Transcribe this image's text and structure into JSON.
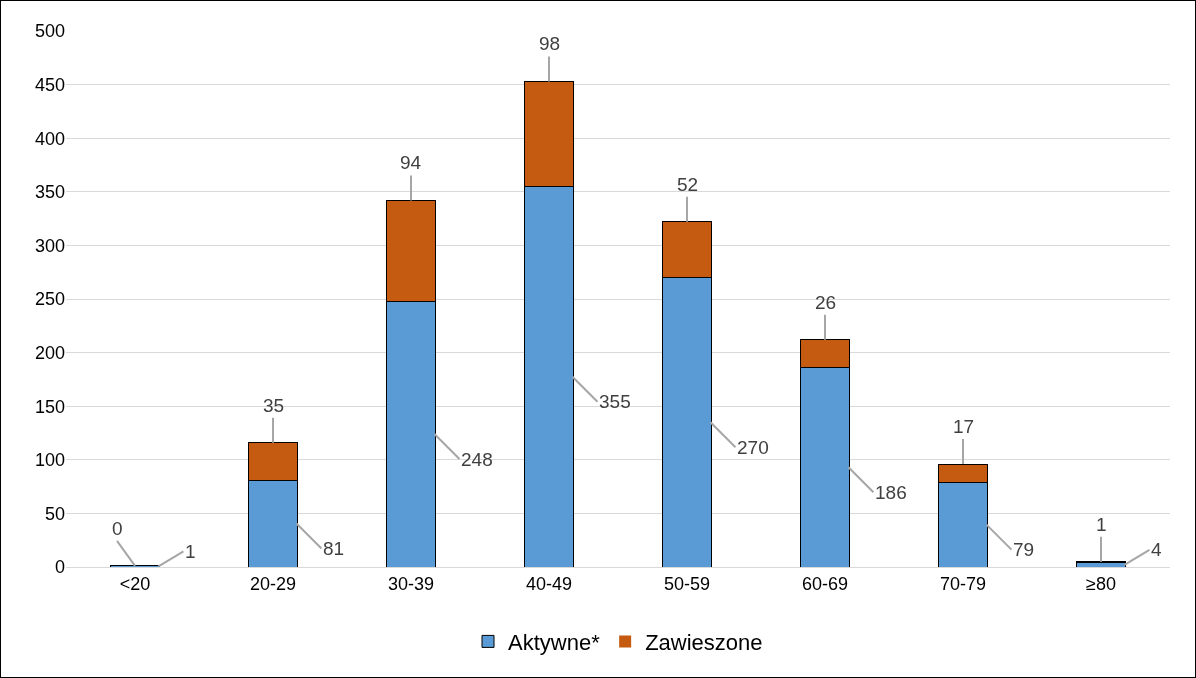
{
  "chart_data": {
    "type": "bar",
    "stacked": true,
    "categories": [
      "<20",
      "20-29",
      "30-39",
      "40-49",
      "50-59",
      "60-69",
      "70-79",
      "≥80"
    ],
    "series": [
      {
        "name": "Aktywne*",
        "color": "#5b9bd5",
        "values": [
          1,
          81,
          248,
          355,
          270,
          186,
          79,
          4
        ]
      },
      {
        "name": "Zawieszone",
        "color": "#c55a11",
        "values": [
          0,
          35,
          94,
          98,
          52,
          26,
          17,
          1
        ]
      }
    ],
    "ylim": [
      0,
      500
    ],
    "yticks": [
      0,
      50,
      100,
      150,
      200,
      250,
      300,
      350,
      400,
      450,
      500
    ],
    "grid": "y",
    "legend": "bottom",
    "data_labels": true
  }
}
